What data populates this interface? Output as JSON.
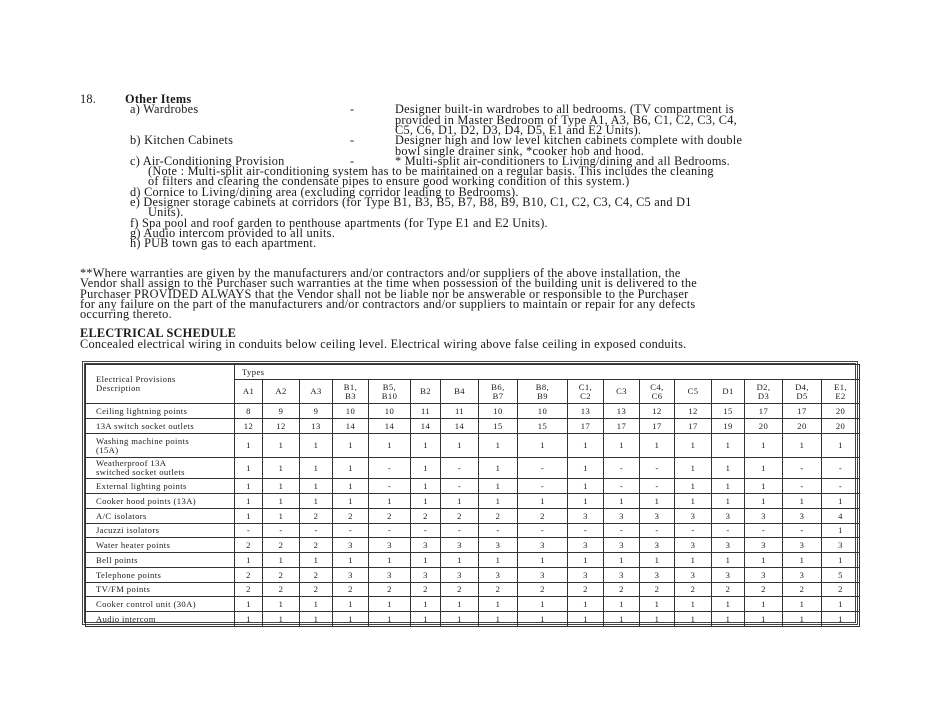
{
  "section": {
    "number": "18.",
    "title": "Other Items",
    "items": [
      {
        "label": "a) Wardrobes",
        "dash": "-",
        "desc": [
          "Designer built-in wardrobes to all bedrooms. (TV compartment is",
          "provided in Master Bedroom of Type A1, A3, B6, C1, C2, C3, C4,",
          "C5, C6, D1, D2, D3, D4, D5, E1 and E2 Units)."
        ]
      },
      {
        "label": "b)  Kitchen Cabinets",
        "dash": "-",
        "desc": [
          "Designer high and low level kitchen cabinets complete with double",
          "bowl single drainer sink, *cooker hob and hood."
        ]
      },
      {
        "label": "c) Air-Conditioning Provision",
        "dash": "-",
        "desc": [
          "* Multi-split air-conditioners to Living/dining and all Bedrooms."
        ]
      }
    ],
    "lines": [
      "(Note : Multi-split air-conditioning system has to be maintained on a regular basis. This includes the cleaning",
      "of filters and clearing the condensate pipes to ensure good working condition of this system.)",
      "d) Cornice to Living/dining area (excluding corridor leading to Bedrooms).",
      "e) Designer storage cabinets at corridors (for Type B1, B3, B5, B7, B8, B9, B10, C1, C2, C3, C4, C5 and D1",
      "Units).",
      "f)  Spa pool and roof garden to penthouse apartments (for Type E1 and E2 Units).",
      "g)  Audio intercom provided to all units.",
      "h)  PUB town gas to each apartment."
    ]
  },
  "warranty": [
    "**Where warranties are given by the manufacturers and/or contractors and/or suppliers of the above installation, the",
    "Vendor shall assign to the Purchaser such warranties at the time when possession of the building unit is delivered to the",
    "Purchaser  PROVIDED ALWAYS that the Vendor shall not be liable nor be answerable or responsible to the Purchaser",
    "for any failure on the part of the manufacturers and/or contractors and/or suppliers to maintain or repair for any defects",
    "occurring thereto."
  ],
  "electrical": {
    "heading": "ELECTRICAL  SCHEDULE",
    "subtitle": "Concealed electrical wiring in conduits below ceiling level. Electrical wiring above false ceiling in exposed conduits.",
    "table": {
      "types_label": "Types",
      "desc_header": [
        "Electrical Provisions",
        "Description"
      ],
      "columns": [
        [
          "A1"
        ],
        [
          "A2"
        ],
        [
          "A3"
        ],
        [
          "B1,",
          "B3"
        ],
        [
          "B5,",
          "B10"
        ],
        [
          "B2"
        ],
        [
          "B4"
        ],
        [
          "B6,",
          "B7"
        ],
        [
          "B8,",
          "B9"
        ],
        [
          "C1,",
          "C2"
        ],
        [
          "C3"
        ],
        [
          "C4,",
          "C6"
        ],
        [
          "C5"
        ],
        [
          "D1"
        ],
        [
          "D2,",
          "D3"
        ],
        [
          "D4,",
          "D5"
        ],
        [
          "E1,",
          "E2"
        ]
      ],
      "rows": [
        {
          "desc": [
            "Ceiling lightning points"
          ],
          "values": [
            "8",
            "9",
            "9",
            "10",
            "10",
            "11",
            "11",
            "10",
            "10",
            "13",
            "13",
            "12",
            "12",
            "15",
            "17",
            "17",
            "20"
          ]
        },
        {
          "desc": [
            "13A switch socket outlets"
          ],
          "values": [
            "12",
            "12",
            "13",
            "14",
            "14",
            "14",
            "14",
            "15",
            "15",
            "17",
            "17",
            "17",
            "17",
            "19",
            "20",
            "20",
            "20"
          ]
        },
        {
          "desc": [
            "Washing machine points",
            "(15A)"
          ],
          "values": [
            "1",
            "1",
            "1",
            "1",
            "1",
            "1",
            "1",
            "1",
            "1",
            "1",
            "1",
            "1",
            "1",
            "1",
            "1",
            "1",
            "1"
          ]
        },
        {
          "desc": [
            "Weatherproof 13A",
            "switched socket outlets"
          ],
          "values": [
            "1",
            "1",
            "1",
            "1",
            "-",
            "1",
            "-",
            "1",
            "-",
            "1",
            "-",
            "-",
            "1",
            "1",
            "1",
            "-",
            "-"
          ]
        },
        {
          "desc": [
            "External lighting points"
          ],
          "values": [
            "1",
            "1",
            "1",
            "1",
            "-",
            "1",
            "-",
            "1",
            "-",
            "1",
            "-",
            "-",
            "1",
            "1",
            "1",
            "-",
            "-"
          ]
        },
        {
          "desc": [
            "Cooker hood points (13A)"
          ],
          "values": [
            "1",
            "1",
            "1",
            "1",
            "1",
            "1",
            "1",
            "1",
            "1",
            "1",
            "1",
            "1",
            "1",
            "1",
            "1",
            "1",
            "1"
          ]
        },
        {
          "desc": [
            "A/C isolators"
          ],
          "values": [
            "1",
            "1",
            "2",
            "2",
            "2",
            "2",
            "2",
            "2",
            "2",
            "3",
            "3",
            "3",
            "3",
            "3",
            "3",
            "3",
            "4"
          ]
        },
        {
          "desc": [
            "Jacuzzi isolators"
          ],
          "values": [
            "-",
            "-",
            "-",
            "-",
            "-",
            "-",
            "-",
            "-",
            "-",
            "-",
            "-",
            "-",
            "-",
            "-",
            "-",
            "-",
            "1"
          ]
        },
        {
          "desc": [
            "Water heater points"
          ],
          "values": [
            "2",
            "2",
            "2",
            "3",
            "3",
            "3",
            "3",
            "3",
            "3",
            "3",
            "3",
            "3",
            "3",
            "3",
            "3",
            "3",
            "3"
          ]
        },
        {
          "desc": [
            "Bell points"
          ],
          "values": [
            "1",
            "1",
            "1",
            "1",
            "1",
            "1",
            "1",
            "1",
            "1",
            "1",
            "1",
            "1",
            "1",
            "1",
            "1",
            "1",
            "1"
          ]
        },
        {
          "desc": [
            "Telephone points"
          ],
          "values": [
            "2",
            "2",
            "2",
            "3",
            "3",
            "3",
            "3",
            "3",
            "3",
            "3",
            "3",
            "3",
            "3",
            "3",
            "3",
            "3",
            "5"
          ]
        },
        {
          "desc": [
            "TV/FM points"
          ],
          "values": [
            "2",
            "2",
            "2",
            "2",
            "2",
            "2",
            "2",
            "2",
            "2",
            "2",
            "2",
            "2",
            "2",
            "2",
            "2",
            "2",
            "2"
          ]
        },
        {
          "desc": [
            "Cooker control unit (30A)"
          ],
          "values": [
            "1",
            "1",
            "1",
            "1",
            "1",
            "1",
            "1",
            "1",
            "1",
            "1",
            "1",
            "1",
            "1",
            "1",
            "1",
            "1",
            "1"
          ]
        },
        {
          "desc": [
            "Audio intercom"
          ],
          "values": [
            "1",
            "1",
            "1",
            "1",
            "1",
            "1",
            "1",
            "1",
            "1",
            "1",
            "1",
            "1",
            "1",
            "1",
            "1",
            "1",
            "1"
          ]
        }
      ]
    }
  }
}
